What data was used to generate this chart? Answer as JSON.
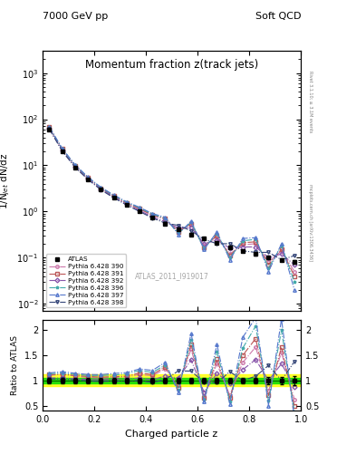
{
  "title": "Momentum fraction z(track jets)",
  "top_left_label": "7000 GeV pp",
  "top_right_label": "Soft QCD",
  "right_label_top": "Rivet 3.1.10; ≥ 3.1M events",
  "right_label_bottom": "mcplots.cern.ch [arXiv:1306.3436]",
  "watermark": "ATLAS_2011_I919017",
  "xlabel": "Charged particle z",
  "ylabel_main": "1/N$_{jet}$ dN/dz",
  "ylabel_ratio": "Ratio to ATLAS",
  "xlim": [
    0,
    1.0
  ],
  "ylim_main": [
    0.007,
    3000
  ],
  "ylim_ratio": [
    0.4,
    2.2
  ],
  "z_values": [
    0.025,
    0.075,
    0.125,
    0.175,
    0.225,
    0.275,
    0.325,
    0.375,
    0.425,
    0.475,
    0.525,
    0.575,
    0.625,
    0.675,
    0.725,
    0.775,
    0.825,
    0.875,
    0.925,
    0.975
  ],
  "atlas_y": [
    60.0,
    20.0,
    9.0,
    5.0,
    3.0,
    2.0,
    1.4,
    1.0,
    0.75,
    0.55,
    0.42,
    0.32,
    0.26,
    0.21,
    0.17,
    0.14,
    0.12,
    0.1,
    0.09,
    0.08
  ],
  "atlas_err": [
    3.0,
    1.0,
    0.45,
    0.25,
    0.15,
    0.1,
    0.07,
    0.05,
    0.038,
    0.028,
    0.021,
    0.016,
    0.013,
    0.011,
    0.009,
    0.008,
    0.007,
    0.007,
    0.007,
    0.007
  ],
  "pythia_390_y": [
    66,
    22.5,
    9.8,
    5.3,
    3.15,
    2.12,
    1.5,
    1.12,
    0.82,
    0.68,
    0.38,
    0.52,
    0.18,
    0.28,
    0.12,
    0.19,
    0.2,
    0.08,
    0.14,
    0.05
  ],
  "pythia_391_y": [
    67,
    22.5,
    9.9,
    5.4,
    3.2,
    2.15,
    1.52,
    1.15,
    0.84,
    0.7,
    0.36,
    0.55,
    0.17,
    0.3,
    0.11,
    0.21,
    0.22,
    0.07,
    0.15,
    0.04
  ],
  "pythia_392_y": [
    63,
    21.0,
    9.3,
    5.1,
    3.05,
    2.05,
    1.44,
    1.05,
    0.76,
    0.6,
    0.44,
    0.45,
    0.2,
    0.24,
    0.16,
    0.17,
    0.17,
    0.1,
    0.12,
    0.07
  ],
  "pythia_396_y": [
    68,
    23.0,
    10.1,
    5.5,
    3.3,
    2.22,
    1.58,
    1.2,
    0.87,
    0.72,
    0.34,
    0.58,
    0.16,
    0.33,
    0.1,
    0.23,
    0.25,
    0.06,
    0.18,
    0.03
  ],
  "pythia_397_y": [
    69,
    23.5,
    10.3,
    5.6,
    3.35,
    2.28,
    1.62,
    1.23,
    0.9,
    0.75,
    0.32,
    0.62,
    0.15,
    0.36,
    0.09,
    0.26,
    0.27,
    0.05,
    0.2,
    0.02
  ],
  "pythia_398_y": [
    62,
    20.5,
    9.1,
    4.95,
    2.95,
    1.98,
    1.38,
    1.0,
    0.72,
    0.56,
    0.5,
    0.38,
    0.25,
    0.2,
    0.2,
    0.14,
    0.13,
    0.13,
    0.09,
    0.11
  ],
  "green_band": 0.05,
  "yellow_band": 0.12,
  "series": [
    {
      "label": "Pythia 6.428 390",
      "color": "#cc77aa",
      "marker": "o",
      "linestyle": "-."
    },
    {
      "label": "Pythia 6.428 391",
      "color": "#bb5555",
      "marker": "s",
      "linestyle": "-."
    },
    {
      "label": "Pythia 6.428 392",
      "color": "#8855aa",
      "marker": "D",
      "linestyle": "-."
    },
    {
      "label": "Pythia 6.428 396",
      "color": "#44aaaa",
      "marker": "*",
      "linestyle": "-."
    },
    {
      "label": "Pythia 6.428 397",
      "color": "#5577cc",
      "marker": "^",
      "linestyle": "-."
    },
    {
      "label": "Pythia 6.428 398",
      "color": "#334477",
      "marker": "v",
      "linestyle": "-."
    }
  ]
}
